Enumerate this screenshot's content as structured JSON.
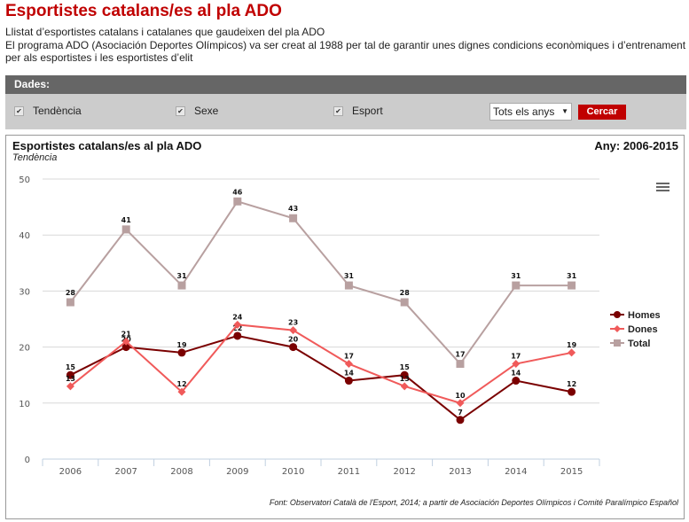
{
  "header": {
    "title": "Esportistes catalans/es al pla ADO",
    "description_1": "Llistat d’esportistes catalans i catalanes que gaudeixen del pla ADO",
    "description_2": "El programa ADO (Asociación Deportes Olímpicos) va ser creat al 1988 per tal de garantir unes dignes condicions econòmiques i d’entrenament per als esportistes i les esportistes d’elit"
  },
  "filters": {
    "section_label": "Dades:",
    "checkboxes": [
      {
        "label": "Tendència",
        "checked": true
      },
      {
        "label": "Sexe",
        "checked": true
      },
      {
        "label": "Esport",
        "checked": true
      }
    ],
    "year_select": "Tots els anys",
    "search_button": "Cercar"
  },
  "chart_panel": {
    "title": "Esportistes catalans/es al pla ADO",
    "subtitle": "Tendència",
    "years_label": "Any: 2006-2015",
    "source": "Font: Observatori Català de l'Esport, 2014; a partir de Asociación Deportes Olímpicos i Comité Paralímpico Español",
    "menu_icon": "hamburger-menu-icon"
  },
  "chart_data": {
    "type": "line",
    "title": "Esportistes catalans/es al pla ADO",
    "subtitle": "Tendència",
    "xlabel": "",
    "ylabel": "",
    "categories": [
      "2006",
      "2007",
      "2008",
      "2009",
      "2010",
      "2011",
      "2012",
      "2013",
      "2014",
      "2015"
    ],
    "ylim": [
      0,
      50
    ],
    "yticks": [
      0,
      10,
      20,
      30,
      40,
      50
    ],
    "grid": true,
    "legend_position": "right",
    "series": [
      {
        "name": "Homes",
        "color": "#7a0000",
        "marker": "circle",
        "values": [
          15,
          20,
          19,
          22,
          20,
          14,
          15,
          7,
          14,
          12
        ]
      },
      {
        "name": "Dones",
        "color": "#f05a5a",
        "marker": "diamond",
        "values": [
          13,
          21,
          12,
          24,
          23,
          17,
          13,
          10,
          17,
          19
        ]
      },
      {
        "name": "Total",
        "color": "#b8a0a0",
        "marker": "square",
        "values": [
          28,
          41,
          31,
          46,
          43,
          31,
          28,
          17,
          31,
          31
        ]
      }
    ]
  }
}
